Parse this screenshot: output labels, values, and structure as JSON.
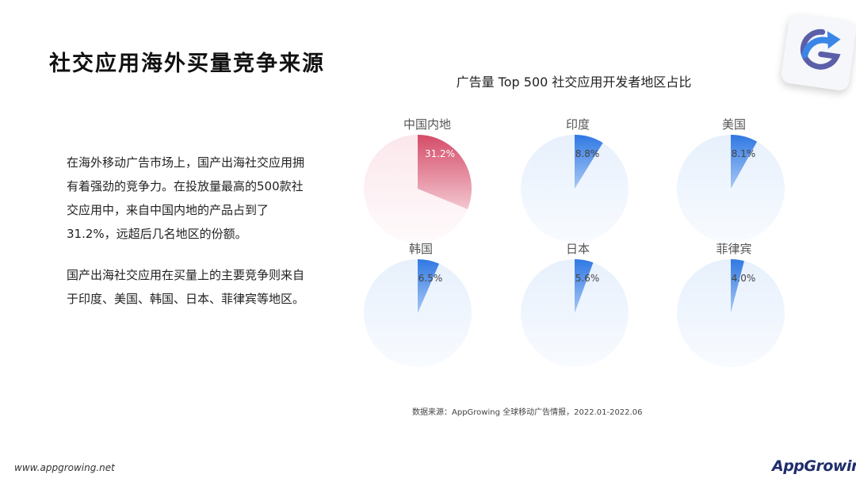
{
  "slide": {
    "title": "社交应用海外买量竞争来源",
    "para1": "在海外移动广告市场上，国产出海社交应用拥有着强劲的竞争力。在投放量最高的500款社交应用中，来自中国内地的产品占到了31.2%，远超后几名地区的份额。",
    "para2": "国产出海社交应用在买量上的主要竞争则来自于印度、美国、韩国、日本、菲律宾等地区。",
    "source": "数据来源：AppGrowing 全球移动广告情报，2022.01-2022.06",
    "website": "www.appgrowing.net",
    "brand": "AppGrowing"
  },
  "colors": {
    "highlight": "#d9546e",
    "highlight_light": "#fdeff2",
    "accent": "#3a7fe0",
    "accent_light": "#edf3fd"
  },
  "icons": {
    "logo": "appgrowing-logo-icon"
  },
  "chart_data": {
    "type": "pie",
    "title": "广告量 Top 500 社交应用开发者地区占比",
    "unit": "%",
    "series": [
      {
        "name": "中国内地",
        "value": 31.2,
        "label": "31.2%"
      },
      {
        "name": "印度",
        "value": 8.8,
        "label": "8.8%"
      },
      {
        "name": "美国",
        "value": 8.1,
        "label": "8.1%"
      },
      {
        "name": "韩国",
        "value": 6.5,
        "label": "6.5%"
      },
      {
        "name": "日本",
        "value": 5.6,
        "label": "5.6%"
      },
      {
        "name": "菲律宾",
        "value": 4.0,
        "label": "4.0%"
      }
    ]
  }
}
